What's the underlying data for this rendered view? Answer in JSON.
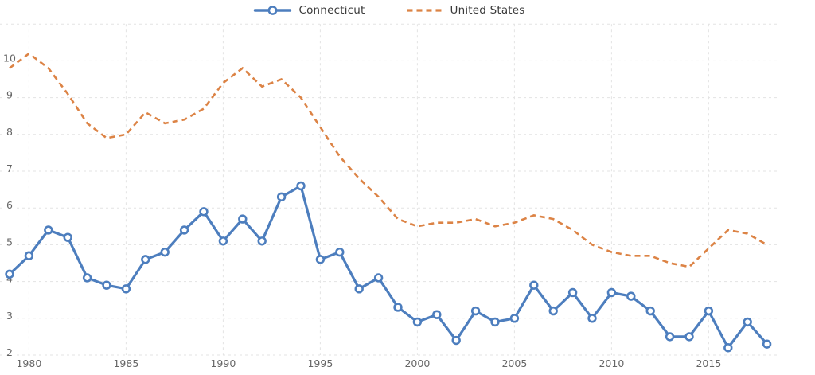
{
  "legend": {
    "items": [
      {
        "label": "Connecticut",
        "swatch": "solid-line-with-circle-marker"
      },
      {
        "label": "United States",
        "swatch": "dashed-line"
      }
    ]
  },
  "colors": {
    "connecticut": "#4d7ebe",
    "united_states": "#dc8345",
    "grid": "#e3e3e3",
    "axis_text": "#666666",
    "legend_text": "#3a3a3a",
    "marker_fill": "#ffffff"
  },
  "chart_data": {
    "type": "line",
    "title": "",
    "xlabel": "",
    "ylabel": "",
    "x": [
      1979,
      1980,
      1981,
      1982,
      1983,
      1984,
      1985,
      1986,
      1987,
      1988,
      1989,
      1990,
      1991,
      1992,
      1993,
      1994,
      1995,
      1996,
      1997,
      1998,
      1999,
      2000,
      2001,
      2002,
      2003,
      2004,
      2005,
      2006,
      2007,
      2008,
      2009,
      2010,
      2011,
      2012,
      2013,
      2014,
      2015,
      2016,
      2017,
      2018
    ],
    "series": [
      {
        "name": "Connecticut",
        "style": "solid",
        "marker": "circle",
        "color": "#4d7ebe",
        "values": [
          4.2,
          4.7,
          5.4,
          5.2,
          4.1,
          3.9,
          3.8,
          4.6,
          4.8,
          5.4,
          5.9,
          5.1,
          5.7,
          5.1,
          6.3,
          6.6,
          4.6,
          4.8,
          3.8,
          4.1,
          3.3,
          2.9,
          3.1,
          2.4,
          3.2,
          2.9,
          3.0,
          3.9,
          3.2,
          3.7,
          3.0,
          3.7,
          3.6,
          3.2,
          2.5,
          2.5,
          3.2,
          2.2,
          2.9,
          2.3
        ]
      },
      {
        "name": "United States",
        "style": "dashed",
        "marker": "none",
        "color": "#dc8345",
        "values": [
          9.8,
          10.2,
          9.8,
          9.1,
          8.3,
          7.9,
          8.0,
          8.6,
          8.3,
          8.4,
          8.7,
          9.4,
          9.8,
          9.3,
          9.5,
          9.0,
          8.2,
          7.4,
          6.8,
          6.3,
          5.7,
          5.5,
          5.6,
          5.6,
          5.7,
          5.5,
          5.6,
          5.8,
          5.7,
          5.4,
          5.0,
          4.8,
          4.7,
          4.7,
          4.5,
          4.4,
          4.9,
          5.4,
          5.3,
          5.0
        ]
      }
    ],
    "xticks": [
      1980,
      1985,
      1990,
      1995,
      2000,
      2005,
      2010,
      2015
    ],
    "yticks": [
      2,
      3,
      4,
      5,
      6,
      7,
      8,
      9,
      10
    ],
    "ylim": [
      2,
      10
    ],
    "grid": true,
    "legend_position": "top-center"
  }
}
